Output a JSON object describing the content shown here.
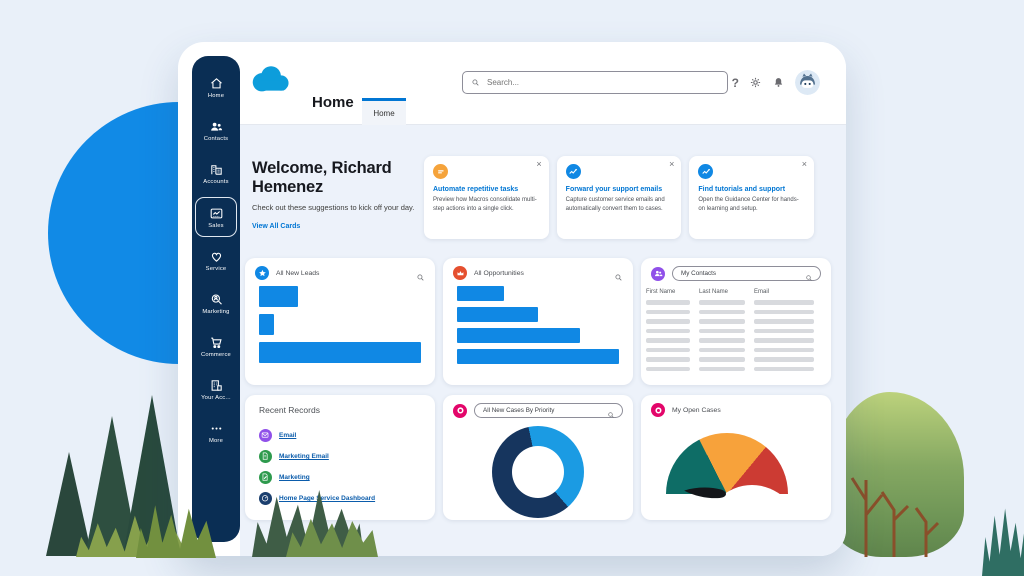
{
  "colors": {
    "accent_blue": "#0176d3",
    "bar_blue": "#1088e4",
    "sidebar_navy": "#0a2e54",
    "link_blue": "#0b5cab",
    "content_bg": "#edf2fa"
  },
  "sidebar": {
    "items": [
      {
        "label": "Home",
        "icon": "home-icon",
        "selected": false
      },
      {
        "label": "Contacts",
        "icon": "contacts-icon",
        "selected": false
      },
      {
        "label": "Accounts",
        "icon": "accounts-icon",
        "selected": false
      },
      {
        "label": "Sales",
        "icon": "sales-icon",
        "selected": true
      },
      {
        "label": "Service",
        "icon": "service-icon",
        "selected": false
      },
      {
        "label": "Marketing",
        "icon": "marketing-icon",
        "selected": false
      },
      {
        "label": "Commerce",
        "icon": "commerce-icon",
        "selected": false
      },
      {
        "label": "Your Acc...",
        "icon": "your-account-icon",
        "selected": false
      },
      {
        "label": "More",
        "icon": "more-icon",
        "selected": false
      }
    ]
  },
  "header": {
    "search_placeholder": "Search...",
    "page_title": "Home",
    "tab_label": "Home",
    "close_glyph": "×",
    "help_glyph": "?"
  },
  "welcome": {
    "title": "Welcome, Richard Hemenez",
    "subtitle": "Check out these suggestions to kick off your day.",
    "link_label": "View All Cards"
  },
  "suggestion_cards": [
    {
      "icon": "macros-icon",
      "icon_color": "#f5a33b",
      "title": "Automate repetitive tasks",
      "description": "Preview how Macros consolidate multi-step actions into a single click."
    },
    {
      "icon": "trend-icon",
      "icon_color": "#1088e4",
      "title": "Forward your support emails",
      "description": "Capture customer service emails and automatically convert them to cases."
    },
    {
      "icon": "trend-icon",
      "icon_color": "#1088e4",
      "title": "Find tutorials and support",
      "description": "Open the Guidance Center for hands-on learning and setup."
    }
  ],
  "contacts_card": {
    "icon": "contacts-badge-icon",
    "icon_color": "#9050e9",
    "search_value": "My Contacts",
    "columns": [
      "First Name",
      "Last Name",
      "Email"
    ],
    "placeholder_rows": 8
  },
  "recent_records": {
    "title": "Recent Records",
    "items": [
      {
        "label": "Email",
        "icon": "email-record-icon",
        "icon_color": "#9050e9"
      },
      {
        "label": "Marketing Email",
        "icon": "document-record-icon",
        "icon_color": "#2e9a4d"
      },
      {
        "label": "Marketing",
        "icon": "document-edit-record-icon",
        "icon_color": "#2e9a4d"
      },
      {
        "label": "Home Page Service Dashboard",
        "icon": "dashboard-record-icon",
        "icon_color": "#1b3f6e"
      }
    ]
  },
  "chart_data": [
    {
      "type": "bar",
      "title": "All New Leads",
      "orientation": "horizontal",
      "icon": "leads-star-icon",
      "icon_color": "#1088e4",
      "bar_color": "#1088e4",
      "values": [
        24,
        9,
        100
      ],
      "unit": "percent_of_max",
      "axes": false
    },
    {
      "type": "bar",
      "title": "All Opportunities",
      "orientation": "horizontal",
      "icon": "opportunity-crown-icon",
      "icon_color": "#e5502f",
      "bar_color": "#1088e4",
      "values": [
        29,
        50,
        76,
        100
      ],
      "unit": "percent_of_max",
      "axes": false
    },
    {
      "type": "pie",
      "style": "donut",
      "title": "All New Cases By Priority",
      "icon": "cases-donut-icon",
      "icon_color": "#e3066a",
      "search_value": "All New Cases By Priority",
      "start_angle_deg": -12,
      "segments": [
        {
          "name": "light-blue",
          "value": 42,
          "color": "#1b9be3"
        },
        {
          "name": "dark-navy",
          "value": 58,
          "color": "#16355e"
        }
      ]
    },
    {
      "type": "gauge",
      "title": "My Open Cases",
      "icon": "cases-donut-icon",
      "icon_color": "#e3066a",
      "needle_angle_deg": 185,
      "segments": [
        {
          "name": "low",
          "value": 35,
          "color": "#0e6d66"
        },
        {
          "name": "medium",
          "value": 37,
          "color": "#f7a23b"
        },
        {
          "name": "high",
          "value": 28,
          "color": "#cc3b33"
        }
      ]
    }
  ]
}
